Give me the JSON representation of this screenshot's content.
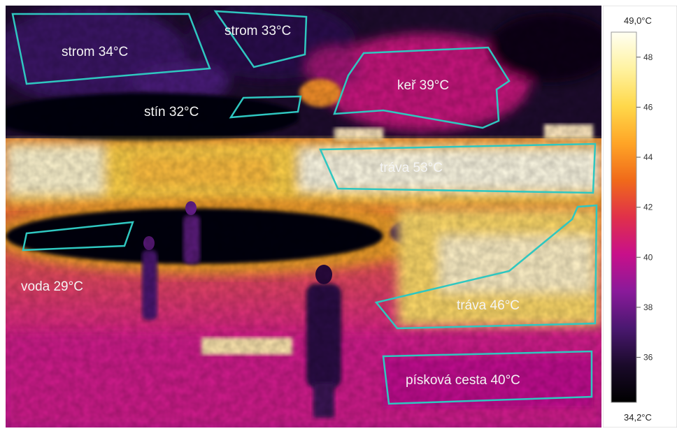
{
  "image": {
    "regions": [
      {
        "id": "strom-34",
        "label": "strom 34°C",
        "temp": 34
      },
      {
        "id": "strom-33",
        "label": "strom 33°C",
        "temp": 33
      },
      {
        "id": "stin-32",
        "label": "stín 32°C",
        "temp": 32
      },
      {
        "id": "ker-39",
        "label": "keř 39°C",
        "temp": 39
      },
      {
        "id": "trava-53",
        "label": "tráva 53°C",
        "temp": 53
      },
      {
        "id": "voda-29",
        "label": "voda 29°C",
        "temp": 29
      },
      {
        "id": "trava-46",
        "label": "tráva 46°C",
        "temp": 46
      },
      {
        "id": "piskova-cesta-40",
        "label": "písková cesta 40°C",
        "temp": 40
      }
    ]
  },
  "scale": {
    "max_label": "49,0°C",
    "min_label": "34,2°C",
    "ticks": [
      "48",
      "46",
      "44",
      "42",
      "40",
      "38",
      "36"
    ],
    "palette": [
      "#fffff2",
      "#fff2a0",
      "#ffd84a",
      "#ffa526",
      "#f06a1a",
      "#e0304a",
      "#c8108a",
      "#8a1a9a",
      "#4a1870",
      "#1a0a2a",
      "#000000"
    ]
  },
  "colors": {
    "outline": "#2fc7c0",
    "hot_white": "#fffbe6",
    "hot_yellow": "#ffd24a",
    "warm_orange": "#f5902a",
    "warm_pink": "#d21a8e",
    "cool_purple": "#5a1a7a",
    "cold_black": "#05020a"
  }
}
